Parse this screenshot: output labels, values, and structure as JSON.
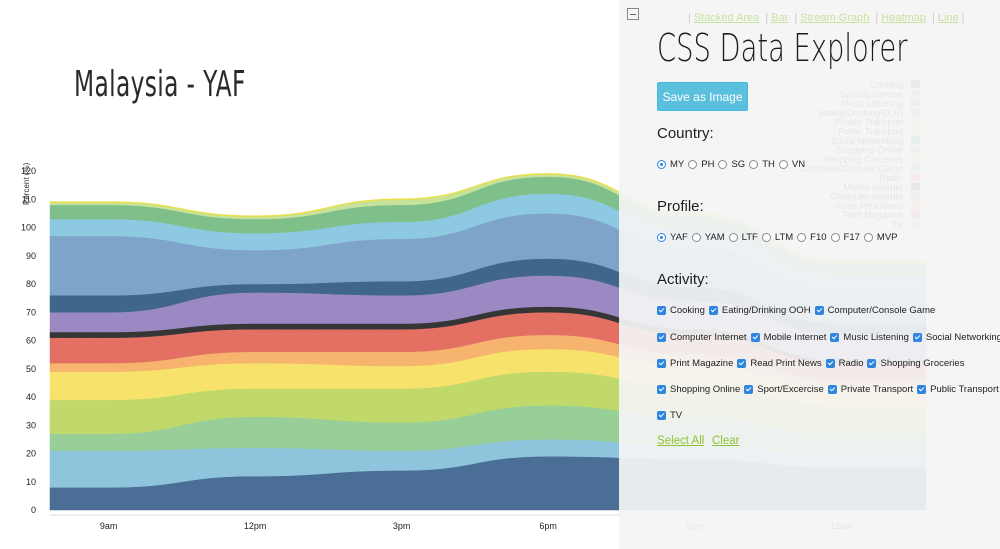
{
  "title": "Malaysia - YAF",
  "chart_data": {
    "type": "area",
    "title": "Malaysia - YAF",
    "ylabel": "Percent (%)",
    "ylim": [
      0,
      120
    ],
    "yticks": [
      0,
      10,
      20,
      30,
      40,
      50,
      60,
      70,
      80,
      90,
      100,
      110,
      120
    ],
    "x": [
      "9am",
      "12pm",
      "3pm",
      "6pm",
      "9pm",
      "12am"
    ],
    "grid": false,
    "series": [
      {
        "name": "TV",
        "color": "#4a6e96",
        "values": [
          8,
          12,
          14,
          19,
          18,
          15
        ]
      },
      {
        "name": "Sport/Excercise",
        "color": "#8ec4dc",
        "values": [
          13,
          10,
          7,
          6,
          5,
          4
        ]
      },
      {
        "name": "Shopping Online",
        "color": "#98cf98",
        "values": [
          6,
          11,
          10,
          12,
          10,
          8
        ]
      },
      {
        "name": "Shopping Groceries",
        "color": "#c0d96a",
        "values": [
          12,
          10,
          12,
          12,
          11,
          10
        ]
      },
      {
        "name": "Radio",
        "color": "#f7e26b",
        "values": [
          10,
          9,
          8,
          8,
          7,
          6
        ]
      },
      {
        "name": "Read Print News",
        "color": "#f6b46f",
        "values": [
          3,
          4,
          5,
          5,
          4,
          3
        ]
      },
      {
        "name": "Print Magazine",
        "color": "#e37063",
        "values": [
          9,
          8,
          8,
          8,
          7,
          6
        ]
      },
      {
        "name": "Social Networking",
        "color": "#363636",
        "values": [
          2,
          2,
          2,
          2,
          2,
          1
        ]
      },
      {
        "name": "Music Listening",
        "color": "#9b89c4",
        "values": [
          7,
          11,
          10,
          11,
          10,
          9
        ]
      },
      {
        "name": "Mobile Internet",
        "color": "#41668c",
        "values": [
          6,
          3,
          5,
          6,
          5,
          4
        ]
      },
      {
        "name": "Computer Internet",
        "color": "#7fa4c9",
        "values": [
          21,
          12,
          15,
          16,
          14,
          12
        ]
      },
      {
        "name": "Computer/Console Game",
        "color": "#8ec9e2",
        "values": [
          6,
          6,
          6,
          7,
          6,
          5
        ]
      },
      {
        "name": "Eating/Drinking OOH",
        "color": "#7fc08a",
        "values": [
          5,
          5,
          6,
          6,
          5,
          4
        ]
      },
      {
        "name": "Cooking",
        "color": "#c7e29a",
        "values": [
          1,
          1,
          2,
          1,
          1,
          1
        ]
      }
    ]
  },
  "legend": [
    "Cooking",
    "Sport/Excercise",
    "Music Listening",
    "Eating/Drinking OOH",
    "Private Transport",
    "Public Transport",
    "Social Networking",
    "Shopping Online",
    "Shopping Groceries",
    "Computer/Console Game",
    "Radio",
    "Mobile Internet",
    "Computer Internet",
    "Read Print News",
    "Print Magazine",
    "TV"
  ],
  "panel": {
    "view_links": [
      "Stacked Area",
      "Bar",
      "Stream Graph",
      "Heatmap",
      "Line"
    ],
    "title": "CSS Data Explorer",
    "save_label": "Save as Image",
    "country_label": "Country:",
    "countries": [
      "MY",
      "PH",
      "SG",
      "TH",
      "VN"
    ],
    "selected_country": "MY",
    "profile_label": "Profile:",
    "profiles": [
      "YAF",
      "YAM",
      "LTF",
      "LTM",
      "F10",
      "F17",
      "MVP"
    ],
    "selected_profile": "YAF",
    "activity_label": "Activity:",
    "activity_rows": [
      [
        "Cooking",
        "Eating/Drinking OOH",
        "Computer/Console Game"
      ],
      [
        "Computer Internet",
        "Mobile Internet",
        "Music Listening",
        "Social Networking"
      ],
      [
        "Print Magazine",
        "Read Print News",
        "Radio",
        "Shopping Groceries"
      ],
      [
        "Shopping Online",
        "Sport/Excercise",
        "Private Transport",
        "Public Transport"
      ],
      [
        "TV"
      ]
    ],
    "select_all": "Select All",
    "clear": "Clear"
  }
}
